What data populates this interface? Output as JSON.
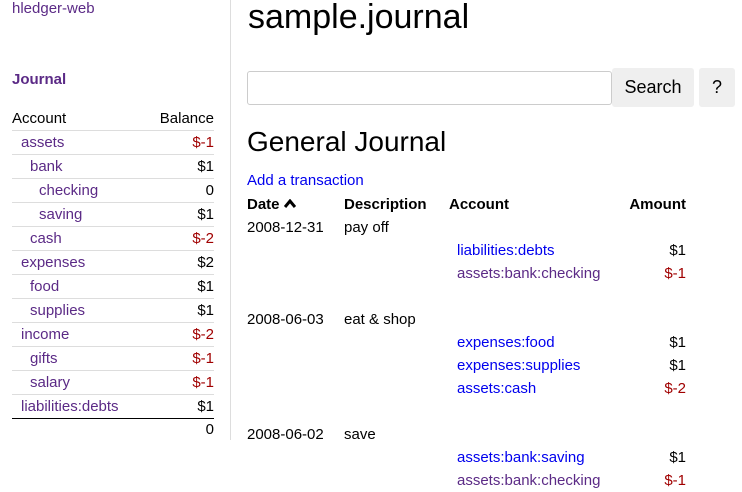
{
  "sidebar": {
    "brand": "hledger-web",
    "journal_link": "Journal",
    "headers": {
      "account": "Account",
      "balance": "Balance"
    },
    "accounts": [
      {
        "name": "assets",
        "level": 0,
        "balance": "$-1",
        "negative": true
      },
      {
        "name": "bank",
        "level": 1,
        "balance": "$1",
        "negative": false
      },
      {
        "name": "checking",
        "level": 2,
        "balance": "0",
        "negative": false
      },
      {
        "name": "saving",
        "level": 2,
        "balance": "$1",
        "negative": false
      },
      {
        "name": "cash",
        "level": 1,
        "balance": "$-2",
        "negative": true
      },
      {
        "name": "expenses",
        "level": 0,
        "balance": "$2",
        "negative": false
      },
      {
        "name": "food",
        "level": 1,
        "balance": "$1",
        "negative": false
      },
      {
        "name": "supplies",
        "level": 1,
        "balance": "$1",
        "negative": false
      },
      {
        "name": "income",
        "level": 0,
        "balance": "$-2",
        "negative": true
      },
      {
        "name": "gifts",
        "level": 1,
        "balance": "$-1",
        "negative": true
      },
      {
        "name": "salary",
        "level": 1,
        "balance": "$-1",
        "negative": true
      },
      {
        "name": "liabilities:debts",
        "level": 0,
        "balance": "$1",
        "negative": false
      }
    ],
    "total": "0"
  },
  "main": {
    "title": "sample.journal",
    "search": {
      "value": "",
      "placeholder": "",
      "button": "Search",
      "help": "?"
    },
    "heading": "General Journal",
    "add_link": "Add a transaction",
    "columns": {
      "date": "Date",
      "sort_icon": "chevron-up-icon",
      "description": "Description",
      "account": "Account",
      "amount": "Amount"
    },
    "transactions": [
      {
        "date": "2008-12-31",
        "description": "pay off",
        "postings": [
          {
            "account": "liabilities:debts",
            "amount": "$1",
            "negative": false,
            "visited": false
          },
          {
            "account": "assets:bank:checking",
            "amount": "$-1",
            "negative": true,
            "visited": true
          }
        ]
      },
      {
        "date": "2008-06-03",
        "description": "eat & shop",
        "postings": [
          {
            "account": "expenses:food",
            "amount": "$1",
            "negative": false,
            "visited": false
          },
          {
            "account": "expenses:supplies",
            "amount": "$1",
            "negative": false,
            "visited": false
          },
          {
            "account": "assets:cash",
            "amount": "$-2",
            "negative": true,
            "visited": false
          }
        ]
      },
      {
        "date": "2008-06-02",
        "description": "save",
        "postings": [
          {
            "account": "assets:bank:saving",
            "amount": "$1",
            "negative": false,
            "visited": false
          },
          {
            "account": "assets:bank:checking",
            "amount": "$-1",
            "negative": true,
            "visited": true
          }
        ]
      }
    ]
  },
  "colors": {
    "link": "#0000ee",
    "visited": "#5b2a86",
    "negative": "#a00000"
  }
}
